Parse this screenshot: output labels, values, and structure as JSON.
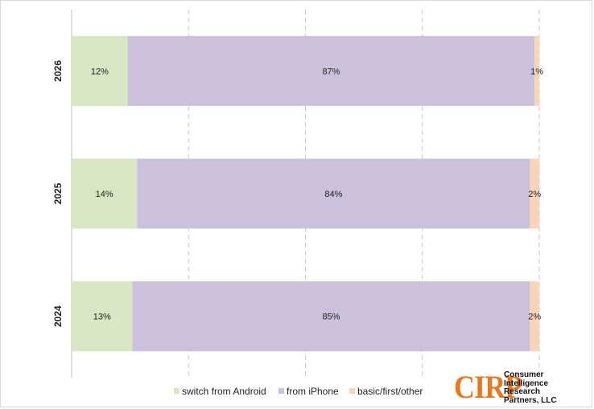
{
  "chart_data": {
    "type": "bar",
    "orientation": "horizontal",
    "stacked": true,
    "percent_stacked": true,
    "categories": [
      "2026",
      "2025",
      "2024"
    ],
    "series": [
      {
        "name": "switch from Android",
        "color": "#d9e6c3",
        "values": [
          12,
          14,
          13
        ],
        "labels": [
          "12%",
          "14%",
          "13%"
        ]
      },
      {
        "name": "from iPhone",
        "color": "#cbc1dd",
        "values": [
          87,
          84,
          85
        ],
        "labels": [
          "87%",
          "84%",
          "85%"
        ]
      },
      {
        "name": "basic/first/other",
        "color": "#f9d4b8",
        "values": [
          1,
          2,
          2
        ],
        "labels": [
          "1%",
          "2%",
          "2%"
        ]
      }
    ],
    "xlim": [
      0,
      100
    ],
    "grid": "vertical dashed",
    "legend": "bottom"
  },
  "logo": {
    "mark": "CIRP",
    "lines": [
      "Consumer",
      "Intelligence",
      "Research",
      "Partners, LLC"
    ]
  }
}
